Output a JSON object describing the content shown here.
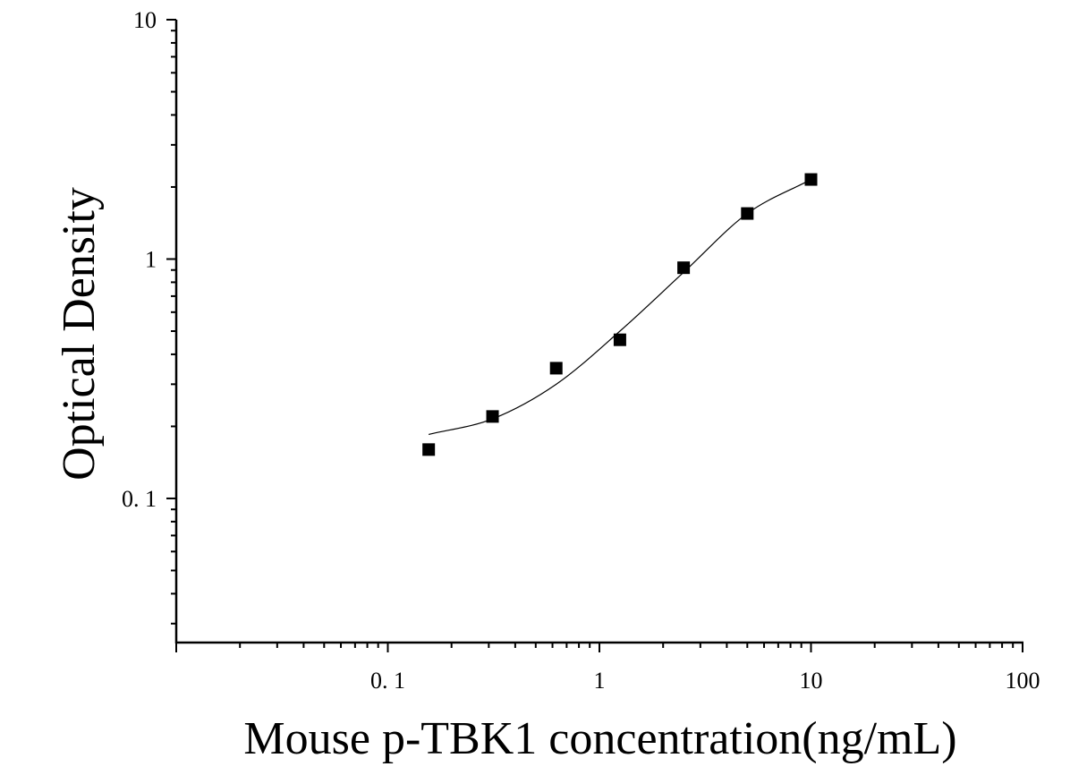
{
  "chart_data": {
    "type": "scatter",
    "xlabel": "Mouse p-TBK1 concentration(ng/mL)",
    "ylabel": "Optical Density",
    "x_scale": "log",
    "y_scale": "log",
    "xlim": [
      0.01,
      100
    ],
    "ylim": [
      0.025,
      10
    ],
    "x_ticks": [
      {
        "value": 0.1,
        "label": "0. 1"
      },
      {
        "value": 1,
        "label": "1"
      },
      {
        "value": 10,
        "label": "10"
      },
      {
        "value": 100,
        "label": "100"
      }
    ],
    "y_ticks": [
      {
        "value": 0.1,
        "label": "0. 1"
      },
      {
        "value": 1,
        "label": "1"
      },
      {
        "value": 10,
        "label": "10"
      }
    ],
    "grid": false,
    "marker_color": "#000000",
    "series": [
      {
        "points": [
          {
            "x": 0.156,
            "y": 0.16
          },
          {
            "x": 0.3125,
            "y": 0.22
          },
          {
            "x": 0.625,
            "y": 0.35
          },
          {
            "x": 1.25,
            "y": 0.46
          },
          {
            "x": 2.5,
            "y": 0.92
          },
          {
            "x": 5,
            "y": 1.55
          },
          {
            "x": 10,
            "y": 2.15
          }
        ]
      }
    ],
    "fit_curve": {
      "points": [
        {
          "x": 0.156,
          "y": 0.185
        },
        {
          "x": 0.3125,
          "y": 0.215
        },
        {
          "x": 0.625,
          "y": 0.3
        },
        {
          "x": 1.25,
          "y": 0.5
        },
        {
          "x": 2.5,
          "y": 0.88
        },
        {
          "x": 5,
          "y": 1.55
        },
        {
          "x": 10,
          "y": 2.15
        }
      ]
    }
  }
}
